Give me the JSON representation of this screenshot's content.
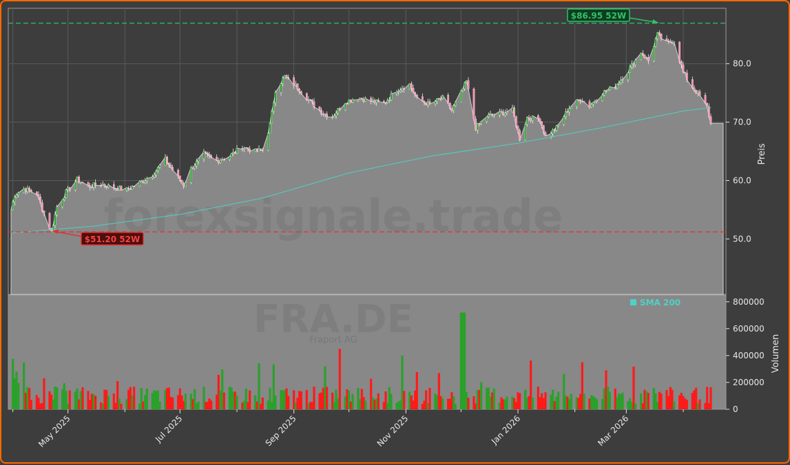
{
  "chart_data": {
    "type": "candlestick",
    "watermark": "forexsignale.trade",
    "ticker": "FRA.DE",
    "company": "Fraport AG",
    "ylabel_price": "Preis",
    "ylabel_volume": "Volumen",
    "ylim_price": [
      40.5,
      89.5
    ],
    "ylim_volume": [
      0,
      850000
    ],
    "price_ticks": [
      {
        "v": 50,
        "label": "50.0"
      },
      {
        "v": 60,
        "label": "60.0"
      },
      {
        "v": 70,
        "label": "70.0"
      },
      {
        "v": 80,
        "label": "80.0"
      }
    ],
    "volume_ticks": [
      {
        "v": 0,
        "label": "0"
      },
      {
        "v": 200000,
        "label": "200000"
      },
      {
        "v": 400000,
        "label": "400000"
      },
      {
        "v": 600000,
        "label": "600000"
      },
      {
        "v": 800000,
        "label": "800000"
      }
    ],
    "x_ticks": [
      "May 2025",
      "Jul 2025",
      "Sep 2025",
      "Nov 2025",
      "Jan 2026",
      "Mar 2026"
    ],
    "high_52w": {
      "value": 86.95,
      "label": "$86.95 52W"
    },
    "low_52w": {
      "value": 51.2,
      "label": "$51.20 52W"
    },
    "legend": "SMA 200",
    "colors": {
      "up": "#2aa12a",
      "down": "#ff1a1a",
      "sma": "#4fd1c5",
      "high": "#2ec26a",
      "low": "#e03030",
      "area": "#888888"
    },
    "close_series": [
      {
        "t": "2025-03-31",
        "c": 55.0
      },
      {
        "t": "2025-04-02",
        "c": 57.5
      },
      {
        "t": "2025-04-07",
        "c": 58.6
      },
      {
        "t": "2025-04-14",
        "c": 57.8
      },
      {
        "t": "2025-04-17",
        "c": 55.2
      },
      {
        "t": "2025-04-22",
        "c": 51.2
      },
      {
        "t": "2025-04-25",
        "c": 55.5
      },
      {
        "t": "2025-04-30",
        "c": 58.0
      },
      {
        "t": "2025-05-06",
        "c": 60.2
      },
      {
        "t": "2025-05-12",
        "c": 59.0
      },
      {
        "t": "2025-05-19",
        "c": 59.4
      },
      {
        "t": "2025-05-26",
        "c": 58.8
      },
      {
        "t": "2025-06-02",
        "c": 58.4
      },
      {
        "t": "2025-06-09",
        "c": 59.6
      },
      {
        "t": "2025-06-16",
        "c": 61.0
      },
      {
        "t": "2025-06-23",
        "c": 63.6
      },
      {
        "t": "2025-06-30",
        "c": 60.5
      },
      {
        "t": "2025-07-03",
        "c": 59.2
      },
      {
        "t": "2025-07-07",
        "c": 62.0
      },
      {
        "t": "2025-07-14",
        "c": 64.5
      },
      {
        "t": "2025-07-21",
        "c": 63.4
      },
      {
        "t": "2025-07-28",
        "c": 64.2
      },
      {
        "t": "2025-08-04",
        "c": 65.8
      },
      {
        "t": "2025-08-11",
        "c": 65.0
      },
      {
        "t": "2025-08-15",
        "c": 65.2
      },
      {
        "t": "2025-08-19",
        "c": 69.5
      },
      {
        "t": "2025-08-22",
        "c": 75.5
      },
      {
        "t": "2025-08-27",
        "c": 77.8
      },
      {
        "t": "2025-09-03",
        "c": 76.0
      },
      {
        "t": "2025-09-10",
        "c": 73.5
      },
      {
        "t": "2025-09-17",
        "c": 71.5
      },
      {
        "t": "2025-09-22",
        "c": 71.0
      },
      {
        "t": "2025-09-29",
        "c": 73.5
      },
      {
        "t": "2025-10-06",
        "c": 74.2
      },
      {
        "t": "2025-10-13",
        "c": 73.6
      },
      {
        "t": "2025-10-20",
        "c": 73.2
      },
      {
        "t": "2025-10-27",
        "c": 75.5
      },
      {
        "t": "2025-11-03",
        "c": 76.5
      },
      {
        "t": "2025-11-07",
        "c": 74.0
      },
      {
        "t": "2025-11-14",
        "c": 73.0
      },
      {
        "t": "2025-11-21",
        "c": 74.2
      },
      {
        "t": "2025-11-26",
        "c": 72.0
      },
      {
        "t": "2025-12-01",
        "c": 75.0
      },
      {
        "t": "2025-12-04",
        "c": 77.0
      },
      {
        "t": "2025-12-09",
        "c": 69.0
      },
      {
        "t": "2025-12-15",
        "c": 71.0
      },
      {
        "t": "2025-12-22",
        "c": 71.5
      },
      {
        "t": "2025-12-29",
        "c": 72.0
      },
      {
        "t": "2026-01-02",
        "c": 67.2
      },
      {
        "t": "2026-01-06",
        "c": 70.8
      },
      {
        "t": "2026-01-13",
        "c": 70.5
      },
      {
        "t": "2026-01-16",
        "c": 67.5
      },
      {
        "t": "2026-01-22",
        "c": 69.0
      },
      {
        "t": "2026-01-29",
        "c": 72.5
      },
      {
        "t": "2026-02-04",
        "c": 74.0
      },
      {
        "t": "2026-02-09",
        "c": 72.8
      },
      {
        "t": "2026-02-16",
        "c": 75.0
      },
      {
        "t": "2026-02-23",
        "c": 76.2
      },
      {
        "t": "2026-03-02",
        "c": 78.8
      },
      {
        "t": "2026-03-09",
        "c": 82.0
      },
      {
        "t": "2026-03-13",
        "c": 80.5
      },
      {
        "t": "2026-03-18",
        "c": 85.0
      },
      {
        "t": "2026-03-23",
        "c": 83.5
      },
      {
        "t": "2026-03-27",
        "c": 84.0
      },
      {
        "t": "2026-04-01",
        "c": 78.5
      },
      {
        "t": "2026-04-06",
        "c": 76.0
      },
      {
        "t": "2026-04-10",
        "c": 74.5
      },
      {
        "t": "2026-04-14",
        "c": 72.5
      },
      {
        "t": "2026-04-16",
        "c": 69.8
      }
    ],
    "sma_series": [
      {
        "t": "2025-03-31",
        "v": 51.0
      },
      {
        "t": "2025-05-15",
        "v": 52.2
      },
      {
        "t": "2025-07-01",
        "v": 54.2
      },
      {
        "t": "2025-08-15",
        "v": 57.0
      },
      {
        "t": "2025-10-01",
        "v": 61.3
      },
      {
        "t": "2025-11-15",
        "v": 64.2
      },
      {
        "t": "2026-01-01",
        "v": 66.4
      },
      {
        "t": "2026-02-15",
        "v": 69.0
      },
      {
        "t": "2026-03-15",
        "v": 70.8
      },
      {
        "t": "2026-04-01",
        "v": 71.9
      },
      {
        "t": "2026-04-16",
        "v": 72.5
      }
    ]
  }
}
